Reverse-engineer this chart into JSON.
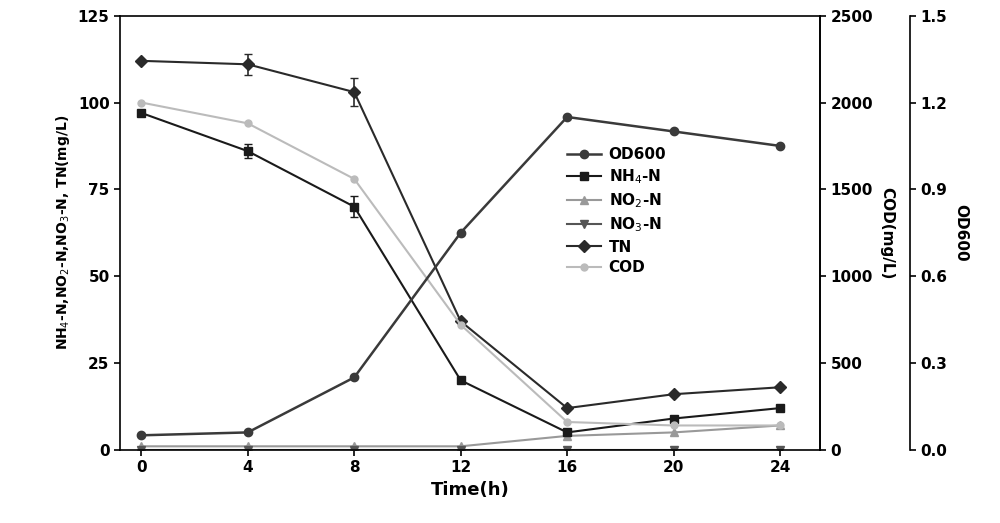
{
  "time": [
    0,
    4,
    8,
    12,
    16,
    20,
    24
  ],
  "OD600": [
    0.05,
    0.06,
    0.25,
    0.75,
    1.15,
    1.1,
    1.05
  ],
  "NH4_N": [
    97,
    86,
    70,
    20,
    5,
    9,
    12
  ],
  "NO2_N": [
    1,
    1,
    1,
    1,
    4,
    5,
    7
  ],
  "NO3_N": [
    0,
    -1,
    -1,
    -1,
    -1,
    -1,
    -1
  ],
  "TN": [
    112,
    111,
    103,
    37,
    12,
    16,
    18
  ],
  "COD": [
    100,
    94,
    78,
    36,
    8,
    7,
    7
  ],
  "TN_err": [
    0,
    3,
    4,
    0,
    0,
    0,
    0
  ],
  "NH4_err": [
    0,
    2,
    3,
    0,
    0,
    0,
    0
  ],
  "OD600_color": "#3a3a3a",
  "NH4_color": "#1a1a1a",
  "NO2_color": "#999999",
  "NO3_color": "#555555",
  "TN_color": "#2a2a2a",
  "COD_color": "#bbbbbb",
  "ylabel_left": "NH$_4$-N,NO$_2$-N,NO$_3$-N, TN(mg/L)",
  "ylabel_mid": "COD(mg/L)",
  "ylabel_right": "OD600",
  "xlabel": "Time(h)",
  "ylim_left": [
    0,
    125
  ],
  "ylim_mid": [
    0,
    2500
  ],
  "ylim_right": [
    0.0,
    1.5
  ],
  "yticks_left": [
    0,
    25,
    50,
    75,
    100,
    125
  ],
  "yticks_mid": [
    0,
    500,
    1000,
    1500,
    2000,
    2500
  ],
  "yticks_right": [
    0.0,
    0.3,
    0.6,
    0.9,
    1.2,
    1.5
  ],
  "xticks": [
    0,
    4,
    8,
    12,
    16,
    20,
    24
  ],
  "xlim": [
    -0.8,
    25.5
  ]
}
